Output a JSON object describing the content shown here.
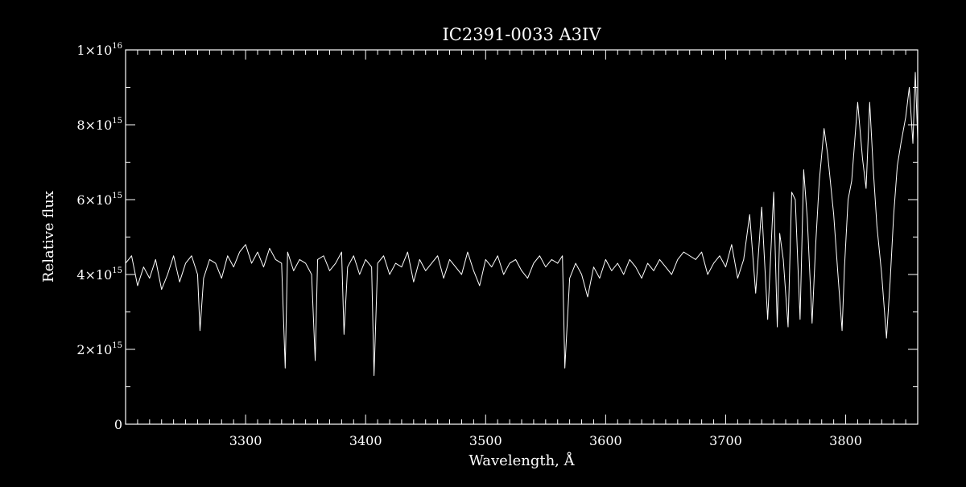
{
  "chart_data": {
    "type": "line",
    "title": "IC2391-0033   A3IV",
    "xlabel": "Wavelength, Å",
    "ylabel": "Relative flux",
    "xlim": [
      3200,
      3860
    ],
    "ylim": [
      0,
      1e+16
    ],
    "grid": false,
    "x_ticks": [
      3300,
      3400,
      3500,
      3600,
      3700,
      3800
    ],
    "x_tick_labels": [
      "3300",
      "3400",
      "3500",
      "3600",
      "3700",
      "3800"
    ],
    "y_ticks": [
      0,
      2000000000000000.0,
      4000000000000000.0,
      6000000000000000.0,
      8000000000000000.0,
      1e+16
    ],
    "y_tick_labels": [
      {
        "base": "0",
        "exp": ""
      },
      {
        "base": "2×10",
        "exp": "15"
      },
      {
        "base": "4×10",
        "exp": "15"
      },
      {
        "base": "6×10",
        "exp": "15"
      },
      {
        "base": "8×10",
        "exp": "15"
      },
      {
        "base": "1×10",
        "exp": "16"
      }
    ],
    "series": [
      {
        "color": "#ffffff",
        "x": [
          3200,
          3205,
          3210,
          3215,
          3220,
          3225,
          3230,
          3235,
          3240,
          3245,
          3250,
          3255,
          3260,
          3262,
          3265,
          3270,
          3275,
          3280,
          3285,
          3290,
          3295,
          3300,
          3305,
          3310,
          3315,
          3320,
          3325,
          3330,
          3333,
          3335,
          3340,
          3345,
          3350,
          3355,
          3358,
          3360,
          3365,
          3370,
          3375,
          3380,
          3382,
          3385,
          3390,
          3395,
          3400,
          3405,
          3407,
          3410,
          3415,
          3420,
          3425,
          3430,
          3435,
          3440,
          3445,
          3450,
          3455,
          3460,
          3465,
          3470,
          3475,
          3480,
          3485,
          3490,
          3495,
          3500,
          3505,
          3510,
          3515,
          3520,
          3525,
          3530,
          3535,
          3540,
          3545,
          3550,
          3555,
          3560,
          3564,
          3566,
          3570,
          3575,
          3580,
          3585,
          3590,
          3595,
          3600,
          3605,
          3610,
          3615,
          3620,
          3625,
          3630,
          3635,
          3640,
          3645,
          3650,
          3655,
          3660,
          3665,
          3670,
          3675,
          3680,
          3685,
          3690,
          3695,
          3700,
          3705,
          3710,
          3715,
          3720,
          3725,
          3730,
          3735,
          3740,
          3743,
          3745,
          3748,
          3752,
          3755,
          3758,
          3762,
          3765,
          3768,
          3772,
          3775,
          3778,
          3782,
          3785,
          3790,
          3794,
          3797,
          3799,
          3802,
          3805,
          3810,
          3814,
          3817,
          3820,
          3823,
          3826,
          3830,
          3834,
          3837,
          3840,
          3843,
          3846,
          3850,
          3853,
          3856,
          3858,
          3860
        ],
        "y": [
          4300000000000000.0,
          4500000000000000.0,
          3700000000000000.0,
          4200000000000000.0,
          3900000000000000.0,
          4400000000000000.0,
          3600000000000000.0,
          4000000000000000.0,
          4500000000000000.0,
          3800000000000000.0,
          4300000000000000.0,
          4500000000000000.0,
          4000000000000000.0,
          2500000000000000.0,
          3900000000000000.0,
          4400000000000000.0,
          4300000000000000.0,
          3900000000000000.0,
          4500000000000000.0,
          4200000000000000.0,
          4600000000000000.0,
          4800000000000000.0,
          4300000000000000.0,
          4600000000000000.0,
          4200000000000000.0,
          4700000000000000.0,
          4400000000000000.0,
          4300000000000000.0,
          1500000000000000.0,
          4600000000000000.0,
          4100000000000000.0,
          4400000000000000.0,
          4300000000000000.0,
          4000000000000000.0,
          1700000000000000.0,
          4400000000000000.0,
          4500000000000000.0,
          4100000000000000.0,
          4300000000000000.0,
          4600000000000000.0,
          2400000000000000.0,
          4200000000000000.0,
          4500000000000000.0,
          4000000000000000.0,
          4400000000000000.0,
          4200000000000000.0,
          1300000000000000.0,
          4300000000000000.0,
          4500000000000000.0,
          4000000000000000.0,
          4300000000000000.0,
          4200000000000000.0,
          4600000000000000.0,
          3800000000000000.0,
          4400000000000000.0,
          4100000000000000.0,
          4300000000000000.0,
          4500000000000000.0,
          3900000000000000.0,
          4400000000000000.0,
          4200000000000000.0,
          4000000000000000.0,
          4600000000000000.0,
          4100000000000000.0,
          3700000000000000.0,
          4400000000000000.0,
          4200000000000000.0,
          4500000000000000.0,
          4000000000000000.0,
          4300000000000000.0,
          4400000000000000.0,
          4100000000000000.0,
          3900000000000000.0,
          4300000000000000.0,
          4500000000000000.0,
          4200000000000000.0,
          4400000000000000.0,
          4300000000000000.0,
          4500000000000000.0,
          1500000000000000.0,
          3900000000000000.0,
          4300000000000000.0,
          4000000000000000.0,
          3400000000000000.0,
          4200000000000000.0,
          3900000000000000.0,
          4400000000000000.0,
          4100000000000000.0,
          4300000000000000.0,
          4000000000000000.0,
          4400000000000000.0,
          4200000000000000.0,
          3900000000000000.0,
          4300000000000000.0,
          4100000000000000.0,
          4400000000000000.0,
          4200000000000000.0,
          4000000000000000.0,
          4400000000000000.0,
          4600000000000000.0,
          4500000000000000.0,
          4400000000000000.0,
          4600000000000000.0,
          4000000000000000.0,
          4300000000000000.0,
          4500000000000000.0,
          4200000000000000.0,
          4800000000000000.0,
          3900000000000000.0,
          4400000000000000.0,
          5600000000000000.0,
          3500000000000000.0,
          5800000000000000.0,
          2800000000000000.0,
          6200000000000000.0,
          2600000000000000.0,
          5100000000000000.0,
          4400000000000000.0,
          2600000000000000.0,
          6200000000000000.0,
          6000000000000000.0,
          2800000000000000.0,
          6800000000000000.0,
          5500000000000000.0,
          2700000000000000.0,
          4800000000000000.0,
          6500000000000000.0,
          7900000000000000.0,
          7200000000000000.0,
          5600000000000000.0,
          3800000000000000.0,
          2500000000000000.0,
          4200000000000000.0,
          6000000000000000.0,
          6500000000000000.0,
          8600000000000000.0,
          7100000000000000.0,
          6300000000000000.0,
          8600000000000000.0,
          6800000000000000.0,
          5300000000000000.0,
          4000000000000000.0,
          2300000000000000.0,
          3800000000000000.0,
          5600000000000000.0,
          6900000000000000.0,
          7500000000000000.0,
          8200000000000000.0,
          9000000000000000.0,
          7500000000000000.0,
          9400000000000000.0,
          7600000000000000.0
        ]
      }
    ]
  }
}
